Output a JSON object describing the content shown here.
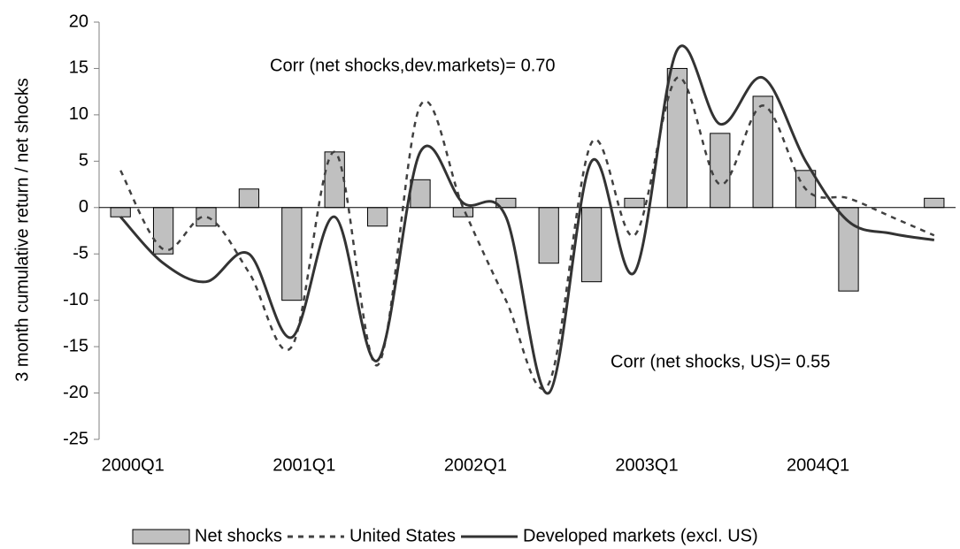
{
  "chart_data": {
    "type": "bar",
    "y_label": "3 month cumulative return / net shocks",
    "categories": [
      "2000Q1",
      null,
      null,
      null,
      "2001Q1",
      null,
      null,
      null,
      "2002Q1",
      null,
      null,
      null,
      "2003Q1",
      null,
      null,
      null,
      "2004Q1",
      null,
      null,
      null
    ],
    "series": [
      {
        "name": "Net shocks",
        "type": "bar",
        "color": "#c0c0c0",
        "values": [
          -1,
          -5,
          -2,
          2,
          -10,
          6,
          -2,
          3,
          -1,
          1,
          -6,
          -8,
          1,
          15,
          8,
          12,
          4,
          -9,
          null,
          1
        ]
      },
      {
        "name": "United States",
        "type": "line",
        "style": "dashed",
        "color": "#404040",
        "values": [
          4,
          -4.5,
          -1,
          -7,
          -15,
          6,
          -17,
          11,
          0,
          -10,
          -19,
          7,
          -3,
          14,
          2.5,
          11,
          2,
          1,
          -1,
          -3
        ]
      },
      {
        "name": "Developed markets (excl. US)",
        "type": "line",
        "style": "solid",
        "color": "#333333",
        "values": [
          -1,
          -6,
          -8,
          -5,
          -14,
          -1,
          -16.5,
          6,
          0.5,
          -1,
          -20,
          5,
          -7,
          17,
          9,
          14,
          5,
          -1.5,
          -2.8,
          -3.5
        ]
      }
    ],
    "annotations": [
      "Corr (net shocks,dev.markets)= 0.70",
      "Corr (net shocks, US)= 0.55"
    ],
    "ylim": [
      -25,
      20
    ],
    "yticks": [
      -25,
      -20,
      -15,
      -10,
      -5,
      0,
      5,
      10,
      15,
      20
    ],
    "legend": "bottom"
  }
}
